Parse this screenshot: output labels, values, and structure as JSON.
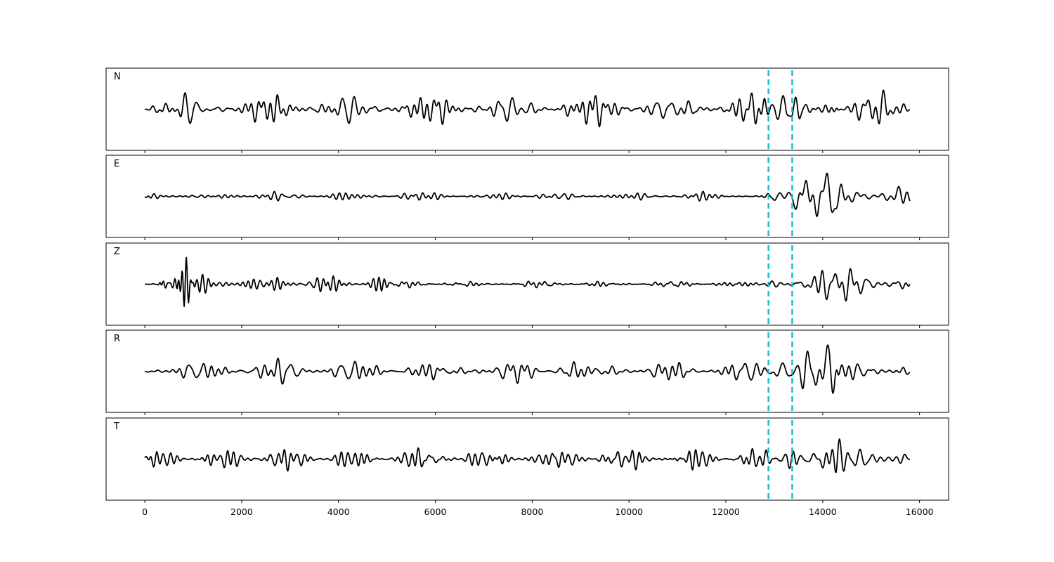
{
  "chart_data": {
    "type": "line",
    "title": "",
    "xlabel": "",
    "ylabel": "",
    "xlim": [
      -800,
      16600
    ],
    "x_ticks": [
      0,
      2000,
      4000,
      6000,
      8000,
      10000,
      12000,
      14000,
      16000
    ],
    "x_tick_labels": [
      "0",
      "2000",
      "4000",
      "6000",
      "8000",
      "10000",
      "12000",
      "14000",
      "16000"
    ],
    "x_range": [
      0,
      15800
    ],
    "grid": false,
    "pick_lines": {
      "color": "#17becf",
      "style": "dashed",
      "x": [
        12880,
        13370
      ]
    },
    "panels": [
      {
        "name": "N",
        "ylim": [
          -1.1,
          1.1
        ],
        "segments": [
          {
            "x_start": 0,
            "x_end": 12880,
            "amplitude": 0.4,
            "period": 230,
            "seed": 11
          },
          {
            "x_start": 12880,
            "x_end": 13370,
            "amplitude": 0.85,
            "period": 300,
            "seed": 12
          },
          {
            "x_start": 13370,
            "x_end": 14200,
            "amplitude": 0.95,
            "period": 220,
            "seed": 13
          },
          {
            "x_start": 14200,
            "x_end": 15800,
            "amplitude": 0.45,
            "period": 230,
            "seed": 14
          }
        ]
      },
      {
        "name": "E",
        "ylim": [
          -1.1,
          1.1
        ],
        "segments": [
          {
            "x_start": 0,
            "x_end": 12880,
            "amplitude": 0.12,
            "period": 200,
            "seed": 21
          },
          {
            "x_start": 12880,
            "x_end": 13370,
            "amplitude": 0.4,
            "period": 330,
            "seed": 22
          },
          {
            "x_start": 13370,
            "x_end": 14400,
            "amplitude": 0.9,
            "period": 250,
            "seed": 23
          },
          {
            "x_start": 14400,
            "x_end": 15800,
            "amplitude": 0.35,
            "period": 260,
            "seed": 24
          }
        ]
      },
      {
        "name": "Z",
        "ylim": [
          -1.1,
          1.1
        ],
        "segments": [
          {
            "x_start": 0,
            "x_end": 380,
            "amplitude": 0.05,
            "period": 200,
            "seed": 31
          },
          {
            "x_start": 380,
            "x_end": 900,
            "amplitude": 0.95,
            "period": 110,
            "seed": 32
          },
          {
            "x_start": 900,
            "x_end": 5000,
            "amplitude": 0.22,
            "period": 170,
            "seed": 33
          },
          {
            "x_start": 5000,
            "x_end": 12880,
            "amplitude": 0.08,
            "period": 190,
            "seed": 34
          },
          {
            "x_start": 12880,
            "x_end": 13370,
            "amplitude": 0.2,
            "period": 300,
            "seed": 35
          },
          {
            "x_start": 13370,
            "x_end": 15800,
            "amplitude": 0.55,
            "period": 260,
            "seed": 36
          }
        ]
      },
      {
        "name": "R",
        "ylim": [
          -1.1,
          1.1
        ],
        "segments": [
          {
            "x_start": 0,
            "x_end": 12880,
            "amplitude": 0.3,
            "period": 220,
            "seed": 41
          },
          {
            "x_start": 12880,
            "x_end": 13370,
            "amplitude": 0.8,
            "period": 320,
            "seed": 42
          },
          {
            "x_start": 13370,
            "x_end": 14200,
            "amplitude": 0.95,
            "period": 230,
            "seed": 43
          },
          {
            "x_start": 14200,
            "x_end": 15800,
            "amplitude": 0.35,
            "period": 240,
            "seed": 44
          }
        ]
      },
      {
        "name": "T",
        "ylim": [
          -1.1,
          1.1
        ],
        "segments": [
          {
            "x_start": 0,
            "x_end": 12880,
            "amplitude": 0.28,
            "period": 190,
            "seed": 51
          },
          {
            "x_start": 12880,
            "x_end": 13370,
            "amplitude": 0.55,
            "period": 210,
            "seed": 52
          },
          {
            "x_start": 13370,
            "x_end": 14200,
            "amplitude": 0.95,
            "period": 200,
            "seed": 53
          },
          {
            "x_start": 14200,
            "x_end": 15800,
            "amplitude": 0.6,
            "period": 230,
            "seed": 54
          }
        ]
      }
    ]
  }
}
